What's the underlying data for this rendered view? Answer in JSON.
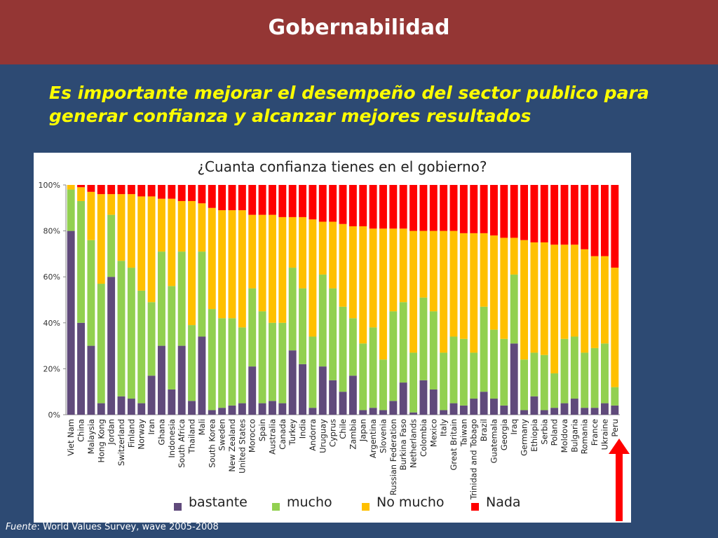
{
  "slide": {
    "title": "Gobernabilidad",
    "subtitle_line1": "Es importante mejorar el desempeño del sector publico para",
    "subtitle_line2": "generar confianza y alcanzar mejores resultados",
    "source_label": "Fuente",
    "source_text": ": World Values Survey, wave 2005-2008"
  },
  "colors": {
    "header": "#943634",
    "background": "#2d4a73",
    "subtitle": "#ffff00",
    "arrow": "#ff0000"
  },
  "chart_data": {
    "type": "bar",
    "stacked": true,
    "title": "¿Cuanta confianza tienes en el gobierno?",
    "xlabel": "",
    "ylabel": "",
    "ylim": [
      0,
      100
    ],
    "y_ticks": [
      "0%",
      "20%",
      "40%",
      "60%",
      "80%",
      "100%"
    ],
    "grid": false,
    "legend_position": "bottom",
    "categories": [
      "Viet Nam",
      "China",
      "Malaysia",
      "Hong Kong",
      "Jordan",
      "Switzerland",
      "Finland",
      "Norway",
      "Iran",
      "Ghana",
      "Indonesia",
      "South Africa",
      "Thailand",
      "Mali",
      "South Korea",
      "Sweden",
      "New Zealand",
      "United States",
      "Morocco",
      "Spain",
      "Australia",
      "Canada",
      "Turkey",
      "India",
      "Andorra",
      "Uruguay",
      "Cyprus",
      "Chile",
      "Zambia",
      "Japan",
      "Argentina",
      "Slovenia",
      "Russian Federation",
      "Burkina Faso",
      "Netherlands",
      "Colombia",
      "Mexico",
      "Italy",
      "Great Britain",
      "Taiwan",
      "Trinidad and Tobago",
      "Brazil",
      "Guatemala",
      "Georgia",
      "Iraq",
      "Germany",
      "Ethiopia",
      "Serbia",
      "Poland",
      "Moldova",
      "Bulgaria",
      "Romania",
      "France",
      "Ukraine",
      "Peru"
    ],
    "series": [
      {
        "name": "bastante",
        "color": "#604a7b",
        "values": [
          80,
          40,
          30,
          5,
          60,
          8,
          7,
          5,
          17,
          30,
          11,
          30,
          6,
          34,
          2,
          3,
          4,
          5,
          21,
          5,
          6,
          5,
          28,
          22,
          3,
          21,
          15,
          10,
          17,
          2,
          3,
          2,
          6,
          14,
          1,
          15,
          11,
          2,
          5,
          4,
          7,
          10,
          7,
          4,
          31,
          2,
          8,
          2,
          3,
          5,
          7,
          3,
          3,
          5,
          4
        ]
      },
      {
        "name": "mucho",
        "color": "#92d050",
        "values": [
          18,
          53,
          46,
          52,
          27,
          59,
          57,
          49,
          32,
          41,
          45,
          41,
          33,
          37,
          44,
          39,
          38,
          33,
          34,
          40,
          34,
          35,
          36,
          33,
          31,
          40,
          40,
          37,
          25,
          29,
          35,
          22,
          39,
          35,
          26,
          36,
          34,
          25,
          29,
          29,
          20,
          37,
          30,
          29,
          30,
          22,
          19,
          24,
          15,
          28,
          27,
          24,
          26,
          26,
          8
        ]
      },
      {
        "name": "No mucho",
        "color": "#ffc000",
        "values": [
          2,
          6,
          21,
          39,
          9,
          29,
          32,
          41,
          46,
          23,
          38,
          22,
          54,
          21,
          44,
          47,
          47,
          51,
          32,
          42,
          47,
          46,
          22,
          31,
          51,
          23,
          29,
          36,
          40,
          51,
          43,
          57,
          36,
          32,
          53,
          29,
          35,
          53,
          46,
          46,
          52,
          32,
          41,
          44,
          16,
          52,
          48,
          49,
          56,
          41,
          40,
          45,
          40,
          38,
          52
        ]
      },
      {
        "name": "Nada",
        "color": "#ff0000",
        "values": [
          0,
          1,
          3,
          4,
          4,
          4,
          4,
          5,
          5,
          6,
          6,
          7,
          7,
          8,
          10,
          11,
          11,
          11,
          13,
          13,
          13,
          14,
          14,
          14,
          15,
          16,
          16,
          17,
          18,
          18,
          19,
          19,
          19,
          19,
          20,
          20,
          20,
          20,
          20,
          21,
          21,
          21,
          22,
          23,
          23,
          24,
          25,
          25,
          26,
          26,
          26,
          28,
          31,
          31,
          36
        ]
      }
    ]
  }
}
